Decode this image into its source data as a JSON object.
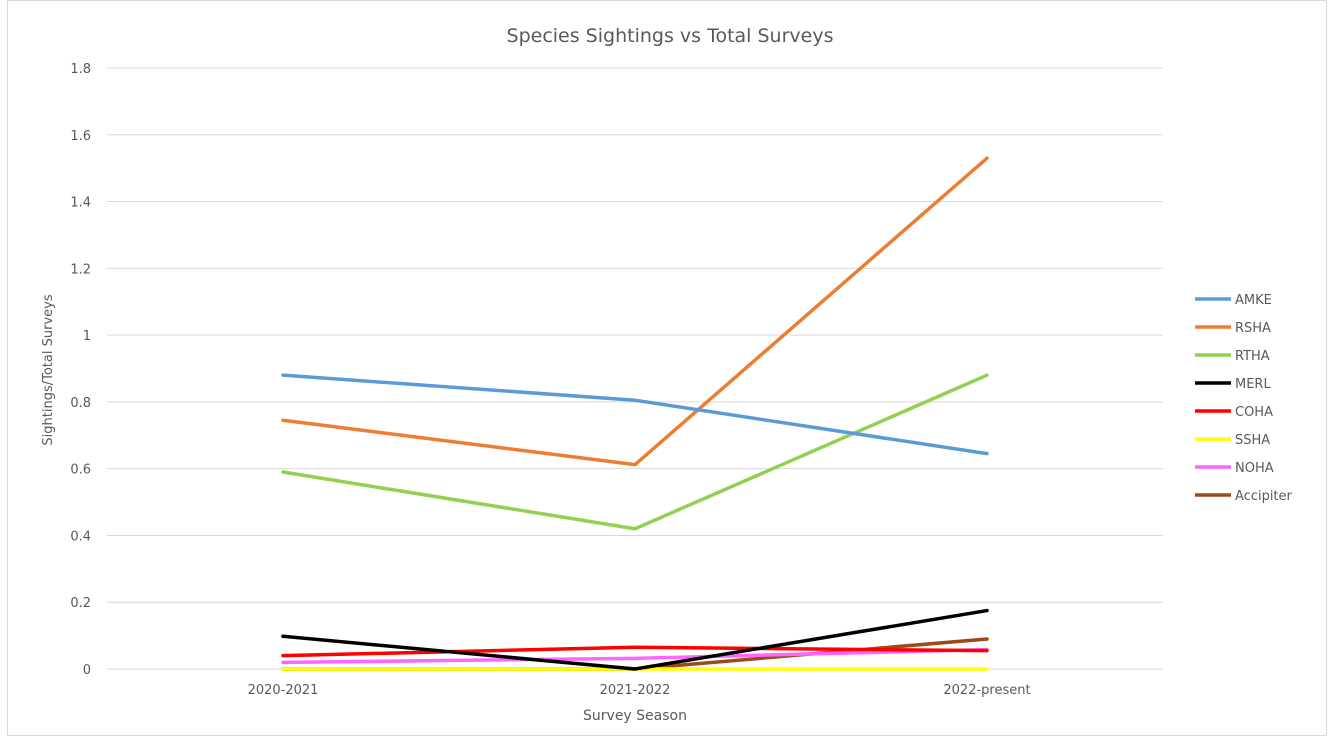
{
  "chart_data": {
    "type": "line",
    "title": "Species Sightings vs Total Surveys",
    "xlabel": "Survey Season",
    "ylabel": "Sightings/Total Surveys",
    "categories": [
      "2020-2021",
      "2021-2022",
      "2022-present"
    ],
    "ylim": [
      0,
      1.8
    ],
    "yticks": [
      0,
      0.2,
      0.4,
      0.6,
      0.8,
      1,
      1.2,
      1.4,
      1.6,
      1.8
    ],
    "ytick_labels": [
      "0",
      "0.2",
      "0.4",
      "0.6",
      "0.8",
      "1",
      "1.2",
      "1.4",
      "1.6",
      "1.8"
    ],
    "grid": true,
    "legend_position": "right",
    "series": [
      {
        "name": "AMKE",
        "color": "#5b9bd5",
        "values": [
          0.88,
          0.805,
          0.645
        ]
      },
      {
        "name": "RSHA",
        "color": "#ed7d31",
        "values": [
          0.745,
          0.612,
          1.53
        ]
      },
      {
        "name": "RTHA",
        "color": "#92d050",
        "values": [
          0.59,
          0.42,
          0.88
        ]
      },
      {
        "name": "MERL",
        "color": "#000000",
        "values": [
          0.098,
          0.0,
          0.175
        ]
      },
      {
        "name": "COHA",
        "color": "#ff0000",
        "values": [
          0.04,
          0.065,
          0.055
        ]
      },
      {
        "name": "SSHA",
        "color": "#ffff00",
        "values": [
          0.0,
          0.0,
          0.0
        ]
      },
      {
        "name": "NOHA",
        "color": "#ff66ff",
        "values": [
          0.02,
          0.032,
          0.058
        ]
      },
      {
        "name": "Accipiter",
        "color": "#9c4a1a",
        "values": [
          0.0,
          0.0,
          0.09
        ]
      }
    ]
  }
}
